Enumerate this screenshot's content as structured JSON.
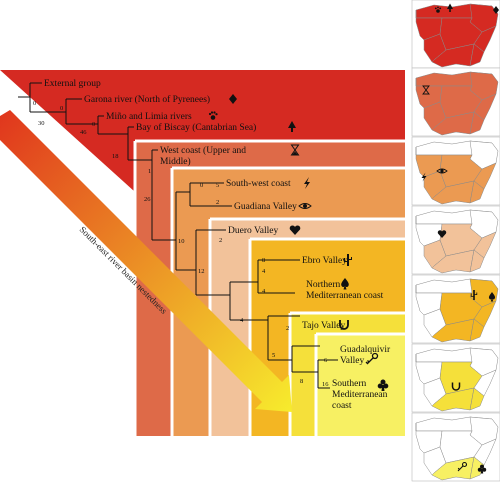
{
  "colors": {
    "external": "#d52a22",
    "garona": "#d52a22",
    "mino": "#d52a22",
    "biscay": "#d52a22",
    "west": "#de6a48",
    "southwest": "#eb9a52",
    "duero": "#f2c29a",
    "ebro": "#f3b623",
    "tajo": "#f5e03a",
    "southern": "#f7f063",
    "arrow_start": "#e0351d",
    "arrow_end": "#f7ec2d",
    "map_base": "#ffffff"
  },
  "groups": [
    {
      "label": "External group",
      "icon": "none"
    },
    {
      "label": "Garona river (North of Pyrenees)",
      "icon": "diamond-icon"
    },
    {
      "label": "Miño and Limia rivers",
      "icon": "paw-icon"
    },
    {
      "label": "Bay of Biscay (Cantabrian Sea)",
      "icon": "tree-icon"
    },
    {
      "label": "West coast (Upper and",
      "label2": "Middle)",
      "icon": "hourglass-icon"
    },
    {
      "label": "South-west coast",
      "icon": "lightning-icon"
    },
    {
      "label": "Guadiana Valley",
      "icon": "eye-icon"
    },
    {
      "label": "Duero Valley",
      "icon": "heart-icon"
    },
    {
      "label": "Ebro Valley",
      "icon": "cactus-icon"
    },
    {
      "label": "Northern",
      "label2": "Mediterranean coast",
      "icon": "spade-icon"
    },
    {
      "label": "Tajo Valley",
      "icon": "horseshoe-icon"
    },
    {
      "label": "Guadalquivir",
      "label2": "Valley",
      "icon": "key-icon"
    },
    {
      "label": "Southern",
      "label2": "Mediterranean",
      "label3": "coast",
      "icon": "club-icon"
    }
  ],
  "branch_numbers": [
    "0",
    "30",
    "0",
    "46",
    "0",
    "18",
    "1",
    "26",
    "0",
    "5",
    "2",
    "10",
    "2",
    "12",
    "8",
    "4",
    "4",
    "2",
    "4",
    "5",
    "6",
    "8",
    "16"
  ],
  "arrow_label": "South-east river basin nestedness",
  "maps": [
    {
      "icons": [
        "paw-icon",
        "tree-icon",
        "diamond-icon"
      ]
    },
    {
      "icons": [
        "hourglass-icon"
      ]
    },
    {
      "icons": [
        "lightning-icon",
        "eye-icon"
      ]
    },
    {
      "icons": [
        "heart-icon"
      ]
    },
    {
      "icons": [
        "cactus-icon",
        "spade-icon"
      ]
    },
    {
      "icons": [
        "horseshoe-icon"
      ]
    },
    {
      "icons": [
        "key-icon",
        "club-icon"
      ]
    }
  ]
}
